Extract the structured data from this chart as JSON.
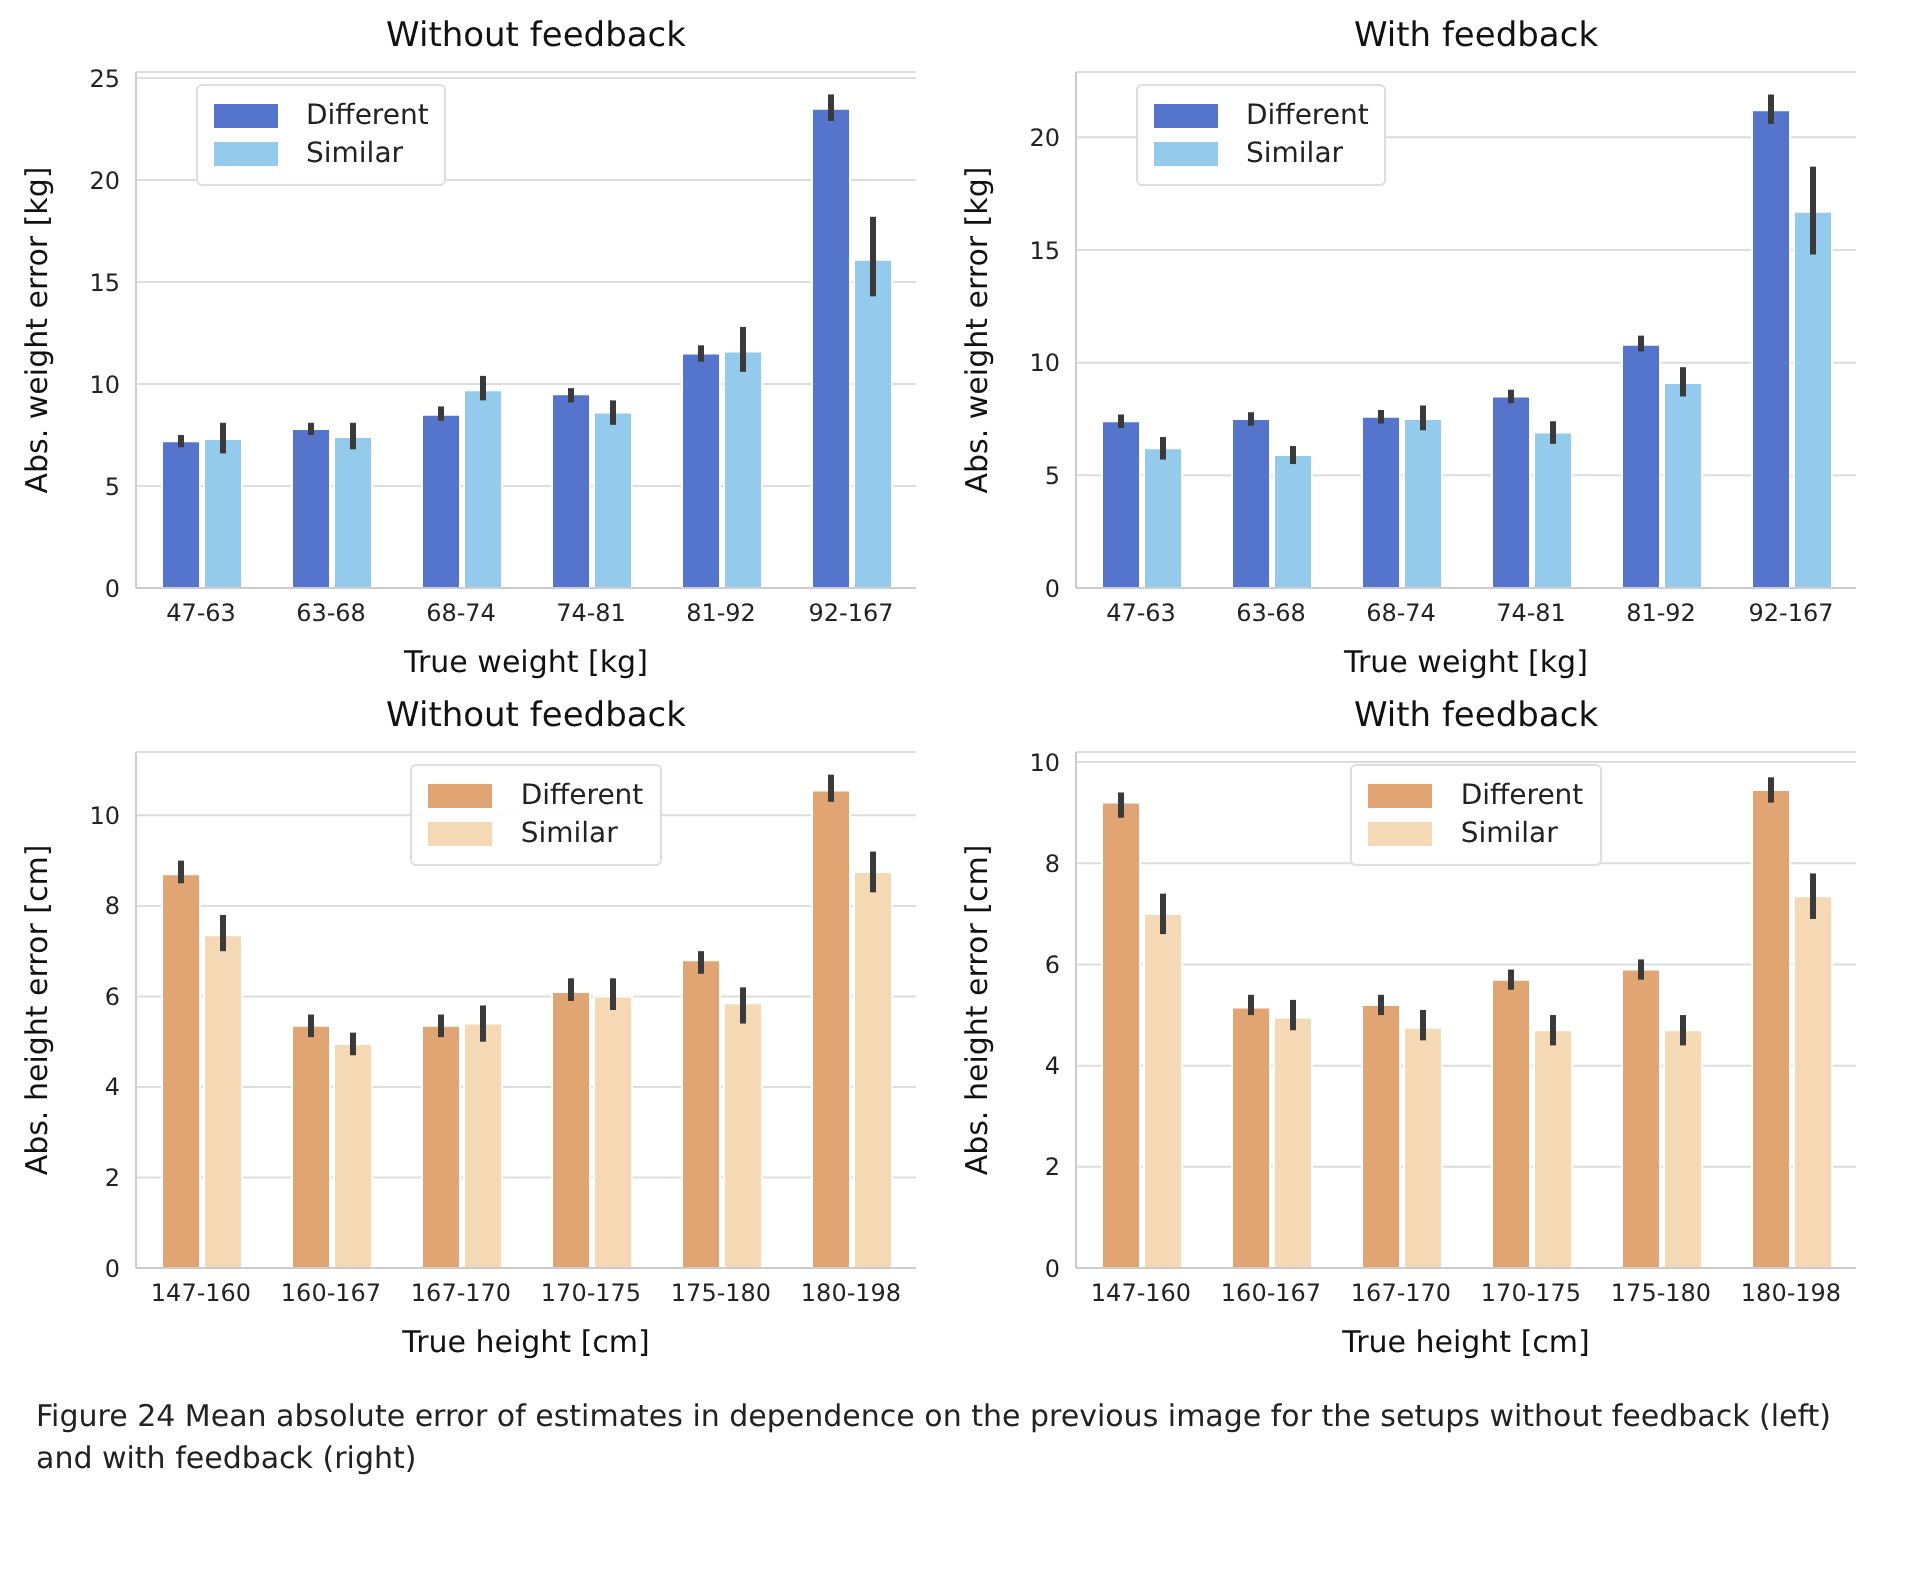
{
  "chart_data": [
    {
      "type": "bar",
      "title": "Without feedback",
      "xlabel": "True weight [kg]",
      "ylabel": "Abs. weight error [kg]",
      "categories": [
        "47-63",
        "63-68",
        "68-74",
        "74-81",
        "81-92",
        "92-167"
      ],
      "series": [
        {
          "name": "Different",
          "color": "#5574cc",
          "values": [
            7.2,
            7.8,
            8.5,
            9.5,
            11.5,
            23.5
          ],
          "errors": [
            [
              6.9,
              7.5
            ],
            [
              7.5,
              8.1
            ],
            [
              8.2,
              8.9
            ],
            [
              9.1,
              9.8
            ],
            [
              11.1,
              11.9
            ],
            [
              22.9,
              24.2
            ]
          ]
        },
        {
          "name": "Similar",
          "color": "#94caec",
          "values": [
            7.3,
            7.4,
            9.7,
            8.6,
            11.6,
            16.1
          ],
          "errors": [
            [
              6.6,
              8.1
            ],
            [
              6.8,
              8.1
            ],
            [
              9.2,
              10.4
            ],
            [
              8.0,
              9.2
            ],
            [
              10.6,
              12.8
            ],
            [
              14.3,
              18.2
            ]
          ]
        }
      ],
      "ylim": [
        0,
        25.3
      ],
      "yticks": [
        0,
        5,
        10,
        15,
        20,
        25
      ],
      "grid": "y",
      "legend": "top left"
    },
    {
      "type": "bar",
      "title": "With feedback",
      "xlabel": "True weight [kg]",
      "ylabel": "Abs. weight error [kg]",
      "categories": [
        "47-63",
        "63-68",
        "68-74",
        "74-81",
        "81-92",
        "92-167"
      ],
      "series": [
        {
          "name": "Different",
          "color": "#5574cc",
          "values": [
            7.4,
            7.5,
            7.6,
            8.5,
            10.8,
            21.2
          ],
          "errors": [
            [
              7.1,
              7.7
            ],
            [
              7.2,
              7.8
            ],
            [
              7.3,
              7.9
            ],
            [
              8.2,
              8.8
            ],
            [
              10.5,
              11.2
            ],
            [
              20.6,
              21.9
            ]
          ]
        },
        {
          "name": "Similar",
          "color": "#94caec",
          "values": [
            6.2,
            5.9,
            7.5,
            6.9,
            9.1,
            16.7
          ],
          "errors": [
            [
              5.7,
              6.7
            ],
            [
              5.5,
              6.3
            ],
            [
              7.0,
              8.1
            ],
            [
              6.4,
              7.4
            ],
            [
              8.5,
              9.8
            ],
            [
              14.8,
              18.7
            ]
          ]
        }
      ],
      "ylim": [
        0,
        22.9
      ],
      "yticks": [
        0,
        5,
        10,
        15,
        20
      ],
      "grid": "y",
      "legend": "top left"
    },
    {
      "type": "bar",
      "title": "Without feedback",
      "xlabel": "True height [cm]",
      "ylabel": "Abs. height error [cm]",
      "categories": [
        "147-160",
        "160-167",
        "167-170",
        "170-175",
        "175-180",
        "180-198"
      ],
      "series": [
        {
          "name": "Different",
          "color": "#e0a572",
          "values": [
            8.7,
            5.35,
            5.35,
            6.1,
            6.8,
            10.55
          ],
          "errors": [
            [
              8.5,
              9.0
            ],
            [
              5.1,
              5.6
            ],
            [
              5.1,
              5.6
            ],
            [
              5.9,
              6.4
            ],
            [
              6.5,
              7.0
            ],
            [
              10.3,
              10.9
            ]
          ]
        },
        {
          "name": "Similar",
          "color": "#f5d9b4",
          "values": [
            7.35,
            4.95,
            5.4,
            6.0,
            5.85,
            8.75
          ],
          "errors": [
            [
              7.0,
              7.8
            ],
            [
              4.7,
              5.2
            ],
            [
              5.0,
              5.8
            ],
            [
              5.7,
              6.4
            ],
            [
              5.4,
              6.2
            ],
            [
              8.3,
              9.2
            ]
          ]
        }
      ],
      "ylim": [
        0,
        11.4
      ],
      "yticks": [
        0,
        2,
        4,
        6,
        8,
        10
      ],
      "grid": "y",
      "legend": "top"
    },
    {
      "type": "bar",
      "title": "With feedback",
      "xlabel": "True height [cm]",
      "ylabel": "Abs. height error [cm]",
      "categories": [
        "147-160",
        "160-167",
        "167-170",
        "170-175",
        "175-180",
        "180-198"
      ],
      "series": [
        {
          "name": "Different",
          "color": "#e0a572",
          "values": [
            9.2,
            5.15,
            5.2,
            5.7,
            5.9,
            9.45
          ],
          "errors": [
            [
              8.9,
              9.4
            ],
            [
              5.0,
              5.4
            ],
            [
              5.0,
              5.4
            ],
            [
              5.5,
              5.9
            ],
            [
              5.7,
              6.1
            ],
            [
              9.2,
              9.7
            ]
          ]
        },
        {
          "name": "Similar",
          "color": "#f5d9b4",
          "values": [
            7.0,
            4.95,
            4.75,
            4.7,
            4.7,
            7.35
          ],
          "errors": [
            [
              6.6,
              7.4
            ],
            [
              4.7,
              5.3
            ],
            [
              4.5,
              5.1
            ],
            [
              4.4,
              5.0
            ],
            [
              4.4,
              5.0
            ],
            [
              6.9,
              7.8
            ]
          ]
        }
      ],
      "ylim": [
        0,
        10.2
      ],
      "yticks": [
        0,
        2,
        4,
        6,
        8,
        10
      ],
      "grid": "y",
      "legend": "top",
      "annotations": [
        "Figure 24  Mean absolute error of estimates in dependence on the previous image for the setups without feedback (left) and with feedback (right)"
      ]
    }
  ]
}
